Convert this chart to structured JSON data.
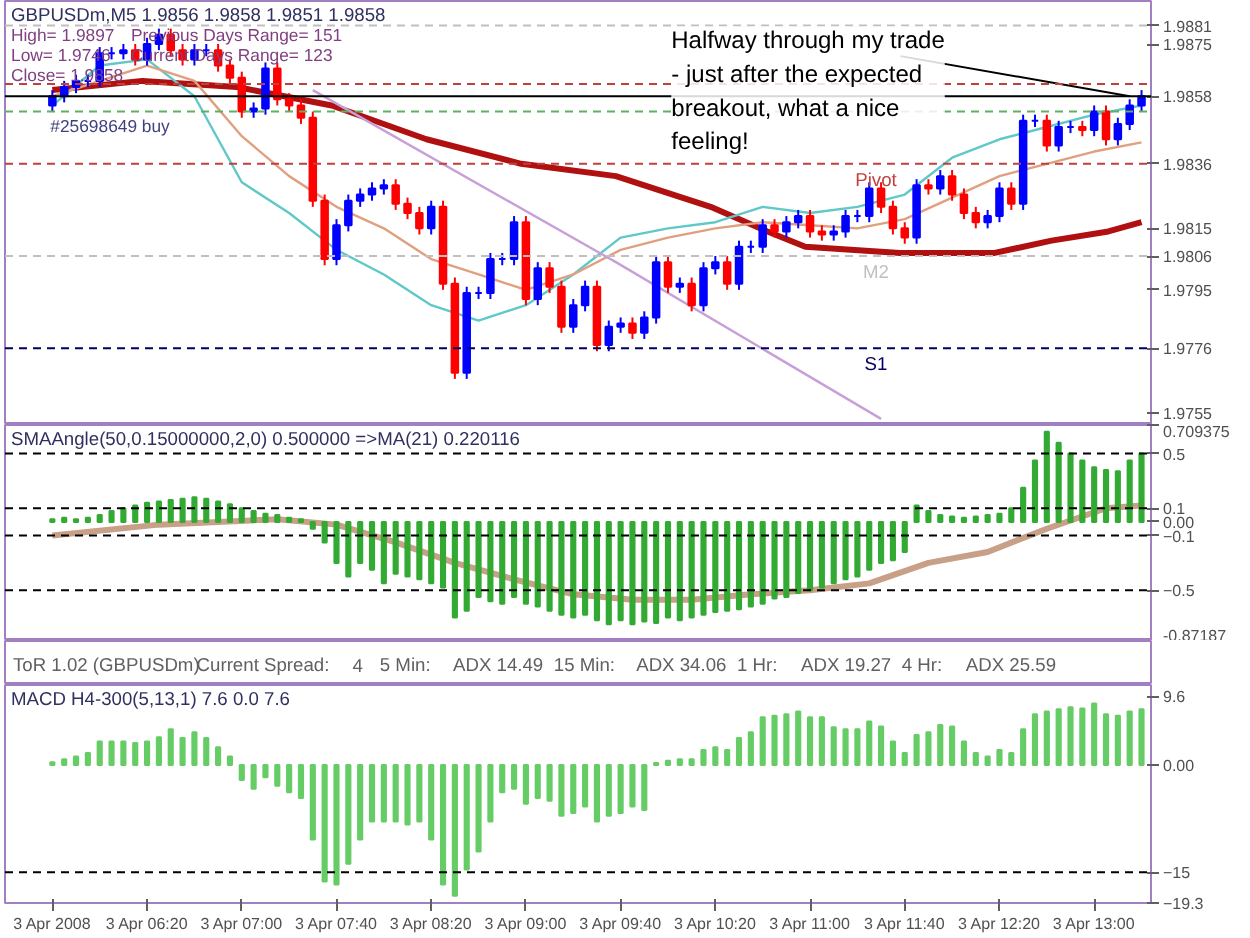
{
  "chart_data": [
    {
      "type": "candlestick",
      "title": "GBPUSDm,M5  1.9856 1.9858 1.9851 1.9858",
      "x": [
        "2008-04-03T05:40",
        "2008-04-03T05:45",
        "2008-04-03T05:50",
        "2008-04-03T05:55",
        "2008-04-03T06:00",
        "2008-04-03T06:05",
        "2008-04-03T06:10",
        "2008-04-03T06:15",
        "2008-04-03T06:20",
        "2008-04-03T06:25",
        "2008-04-03T06:30",
        "2008-04-03T06:35",
        "2008-04-03T06:40",
        "2008-04-03T06:45",
        "2008-04-03T06:50",
        "2008-04-03T06:55",
        "2008-04-03T07:00",
        "2008-04-03T07:05",
        "2008-04-03T07:10",
        "2008-04-03T07:15",
        "2008-04-03T07:20",
        "2008-04-03T07:25",
        "2008-04-03T07:30",
        "2008-04-03T07:35",
        "2008-04-03T07:40",
        "2008-04-03T07:45",
        "2008-04-03T07:50",
        "2008-04-03T07:55",
        "2008-04-03T08:00",
        "2008-04-03T08:05",
        "2008-04-03T08:10",
        "2008-04-03T08:15",
        "2008-04-03T08:20",
        "2008-04-03T08:25",
        "2008-04-03T08:30",
        "2008-04-03T08:35",
        "2008-04-03T08:40",
        "2008-04-03T08:45",
        "2008-04-03T08:50",
        "2008-04-03T08:55",
        "2008-04-03T09:00",
        "2008-04-03T09:05",
        "2008-04-03T09:10",
        "2008-04-03T09:15",
        "2008-04-03T09:20",
        "2008-04-03T09:25",
        "2008-04-03T09:30",
        "2008-04-03T09:35",
        "2008-04-03T09:40",
        "2008-04-03T09:45",
        "2008-04-03T09:50",
        "2008-04-03T09:55",
        "2008-04-03T10:00",
        "2008-04-03T10:05",
        "2008-04-03T10:10",
        "2008-04-03T10:15",
        "2008-04-03T10:20",
        "2008-04-03T10:25",
        "2008-04-03T10:30",
        "2008-04-03T10:35",
        "2008-04-03T10:40",
        "2008-04-03T10:45",
        "2008-04-03T10:50",
        "2008-04-03T10:55",
        "2008-04-03T11:00",
        "2008-04-03T11:05",
        "2008-04-03T11:10",
        "2008-04-03T11:15",
        "2008-04-03T11:20",
        "2008-04-03T11:25",
        "2008-04-03T11:30",
        "2008-04-03T11:35",
        "2008-04-03T11:40",
        "2008-04-03T11:45",
        "2008-04-03T11:50",
        "2008-04-03T11:55",
        "2008-04-03T12:00",
        "2008-04-03T12:05",
        "2008-04-03T12:10",
        "2008-04-03T12:15",
        "2008-04-03T12:20",
        "2008-04-03T12:25",
        "2008-04-03T12:30",
        "2008-04-03T12:35",
        "2008-04-03T12:40",
        "2008-04-03T12:45",
        "2008-04-03T12:50",
        "2008-04-03T12:55",
        "2008-04-03T13:00",
        "2008-04-03T13:05",
        "2008-04-03T13:10",
        "2008-04-03T13:15",
        "2008-04-03T13:20"
      ],
      "ohlc": [
        [
          1.9855,
          1.986,
          1.9853,
          1.9858
        ],
        [
          1.9858,
          1.9863,
          1.9856,
          1.9861
        ],
        [
          1.9861,
          1.9865,
          1.9859,
          1.9863
        ],
        [
          1.9863,
          1.9865,
          1.9861,
          1.9863
        ],
        [
          1.9863,
          1.9874,
          1.9861,
          1.9872
        ],
        [
          1.9872,
          1.9874,
          1.987,
          1.9872
        ],
        [
          1.9872,
          1.9875,
          1.987,
          1.9873
        ],
        [
          1.9873,
          1.9875,
          1.9868,
          1.987
        ],
        [
          1.987,
          1.9877,
          1.9868,
          1.9875
        ],
        [
          1.9875,
          1.988,
          1.9873,
          1.9878
        ],
        [
          1.9878,
          1.988,
          1.9871,
          1.9873
        ],
        [
          1.9873,
          1.9875,
          1.9868,
          1.987
        ],
        [
          1.987,
          1.9875,
          1.9868,
          1.9873
        ],
        [
          1.9873,
          1.9875,
          1.9871,
          1.9873
        ],
        [
          1.9873,
          1.9875,
          1.9866,
          1.9868
        ],
        [
          1.9868,
          1.987,
          1.9862,
          1.9864
        ],
        [
          1.9864,
          1.9866,
          1.9851,
          1.9853
        ],
        [
          1.9853,
          1.9856,
          1.9851,
          1.9854
        ],
        [
          1.9854,
          1.9869,
          1.9852,
          1.9867
        ],
        [
          1.9867,
          1.9869,
          1.9855,
          1.9857
        ],
        [
          1.9857,
          1.9859,
          1.9853,
          1.9855
        ],
        [
          1.9855,
          1.9857,
          1.9849,
          1.9851
        ],
        [
          1.9851,
          1.9853,
          1.9822,
          1.9824
        ],
        [
          1.9824,
          1.9826,
          1.9803,
          1.9805
        ],
        [
          1.9805,
          1.9818,
          1.9803,
          1.9816
        ],
        [
          1.9816,
          1.9826,
          1.9814,
          1.9824
        ],
        [
          1.9824,
          1.9828,
          1.9822,
          1.9826
        ],
        [
          1.9826,
          1.983,
          1.9824,
          1.9828
        ],
        [
          1.9828,
          1.9831,
          1.9826,
          1.9829
        ],
        [
          1.9829,
          1.9831,
          1.9821,
          1.9823
        ],
        [
          1.9823,
          1.9825,
          1.9818,
          1.982
        ],
        [
          1.982,
          1.9822,
          1.9813,
          1.9815
        ],
        [
          1.9815,
          1.9824,
          1.9813,
          1.9822
        ],
        [
          1.9822,
          1.9824,
          1.9795,
          1.9797
        ],
        [
          1.9797,
          1.9799,
          1.9766,
          1.9768
        ],
        [
          1.9768,
          1.9796,
          1.9766,
          1.9794
        ],
        [
          1.9794,
          1.9796,
          1.9792,
          1.9794
        ],
        [
          1.9794,
          1.9807,
          1.9792,
          1.9805
        ],
        [
          1.9805,
          1.9807,
          1.9803,
          1.9805
        ],
        [
          1.9805,
          1.9819,
          1.9803,
          1.9817
        ],
        [
          1.9817,
          1.9819,
          1.979,
          1.9792
        ],
        [
          1.9792,
          1.9804,
          1.979,
          1.9802
        ],
        [
          1.9802,
          1.9804,
          1.9794,
          1.9796
        ],
        [
          1.9796,
          1.9798,
          1.9781,
          1.9783
        ],
        [
          1.9783,
          1.9792,
          1.9781,
          1.979
        ],
        [
          1.979,
          1.9798,
          1.9788,
          1.9796
        ],
        [
          1.9796,
          1.9798,
          1.9775,
          1.9777
        ],
        [
          1.9777,
          1.9785,
          1.9775,
          1.9783
        ],
        [
          1.9783,
          1.9786,
          1.9781,
          1.9784
        ],
        [
          1.9784,
          1.9786,
          1.9779,
          1.9781
        ],
        [
          1.9781,
          1.9788,
          1.9779,
          1.9786
        ],
        [
          1.9786,
          1.9806,
          1.9784,
          1.9804
        ],
        [
          1.9804,
          1.9806,
          1.9794,
          1.9796
        ],
        [
          1.9796,
          1.9799,
          1.9794,
          1.9797
        ],
        [
          1.9797,
          1.9799,
          1.9788,
          1.979
        ],
        [
          1.979,
          1.9804,
          1.9788,
          1.9802
        ],
        [
          1.9802,
          1.9806,
          1.98,
          1.9804
        ],
        [
          1.9804,
          1.9806,
          1.9795,
          1.9797
        ],
        [
          1.9797,
          1.9811,
          1.9795,
          1.9809
        ],
        [
          1.9809,
          1.9811,
          1.9807,
          1.9809
        ],
        [
          1.9809,
          1.9818,
          1.9807,
          1.9816
        ],
        [
          1.9816,
          1.9818,
          1.9812,
          1.9814
        ],
        [
          1.9814,
          1.9819,
          1.9812,
          1.9817
        ],
        [
          1.9817,
          1.9821,
          1.9815,
          1.9819
        ],
        [
          1.9819,
          1.9821,
          1.9812,
          1.9814
        ],
        [
          1.9814,
          1.9816,
          1.9811,
          1.9813
        ],
        [
          1.9813,
          1.9816,
          1.9811,
          1.9814
        ],
        [
          1.9814,
          1.9821,
          1.9812,
          1.9819
        ],
        [
          1.9819,
          1.9821,
          1.9817,
          1.9819
        ],
        [
          1.9819,
          1.983,
          1.9817,
          1.9828
        ],
        [
          1.9828,
          1.983,
          1.982,
          1.9822
        ],
        [
          1.9822,
          1.9824,
          1.9813,
          1.9815
        ],
        [
          1.9815,
          1.9817,
          1.981,
          1.9812
        ],
        [
          1.9812,
          1.9831,
          1.981,
          1.9829
        ],
        [
          1.9829,
          1.9831,
          1.9826,
          1.9828
        ],
        [
          1.9828,
          1.9834,
          1.9826,
          1.9832
        ],
        [
          1.9832,
          1.9834,
          1.9824,
          1.9826
        ],
        [
          1.9826,
          1.9828,
          1.9818,
          1.982
        ],
        [
          1.982,
          1.9822,
          1.9815,
          1.9817
        ],
        [
          1.9817,
          1.9821,
          1.9815,
          1.9819
        ],
        [
          1.9819,
          1.983,
          1.9817,
          1.9828
        ],
        [
          1.9828,
          1.983,
          1.9821,
          1.9823
        ],
        [
          1.9823,
          1.9852,
          1.9821,
          1.985
        ],
        [
          1.985,
          1.9852,
          1.9848,
          1.985
        ],
        [
          1.985,
          1.9852,
          1.984,
          1.9842
        ],
        [
          1.9842,
          1.985,
          1.984,
          1.9848
        ],
        [
          1.9848,
          1.985,
          1.9846,
          1.9848
        ],
        [
          1.9848,
          1.985,
          1.9845,
          1.9847
        ],
        [
          1.9847,
          1.9855,
          1.9845,
          1.9853
        ],
        [
          1.9853,
          1.9855,
          1.9842,
          1.9844
        ],
        [
          1.9844,
          1.9851,
          1.9842,
          1.9849
        ],
        [
          1.9849,
          1.9857,
          1.9847,
          1.9855
        ],
        [
          1.9855,
          1.986,
          1.9853,
          1.9858
        ]
      ],
      "colors": [
        "#0000ff",
        "#0000ff",
        "#0000ff",
        "#0000ff",
        "#0000ff",
        "#0000ff",
        "#0000ff",
        "#ff0000",
        "#0000ff",
        "#0000ff",
        "#ff0000",
        "#ff0000",
        "#0000ff",
        "#0000ff",
        "#ff0000",
        "#ff0000",
        "#ff0000",
        "#0000ff",
        "#0000ff",
        "#ff0000",
        "#ff0000",
        "#ff0000",
        "#ff0000",
        "#ff0000",
        "#0000ff",
        "#0000ff",
        "#0000ff",
        "#0000ff",
        "#0000ff",
        "#ff0000",
        "#ff0000",
        "#ff0000",
        "#0000ff",
        "#ff0000",
        "#ff0000",
        "#0000ff",
        "#0000ff",
        "#0000ff",
        "#0000ff",
        "#0000ff",
        "#ff0000",
        "#0000ff",
        "#ff0000",
        "#ff0000",
        "#0000ff",
        "#0000ff",
        "#ff0000",
        "#0000ff",
        "#0000ff",
        "#ff0000",
        "#0000ff",
        "#0000ff",
        "#ff0000",
        "#0000ff",
        "#ff0000",
        "#0000ff",
        "#0000ff",
        "#ff0000",
        "#0000ff",
        "#0000ff",
        "#0000ff",
        "#ff0000",
        "#0000ff",
        "#0000ff",
        "#ff0000",
        "#ff0000",
        "#0000ff",
        "#0000ff",
        "#0000ff",
        "#0000ff",
        "#ff0000",
        "#ff0000",
        "#ff0000",
        "#0000ff",
        "#ff0000",
        "#0000ff",
        "#ff0000",
        "#ff0000",
        "#ff0000",
        "#0000ff",
        "#0000ff",
        "#ff0000",
        "#0000ff",
        "#0000ff",
        "#ff0000",
        "#0000ff",
        "#0000ff",
        "#ff0000",
        "#0000ff",
        "#ff0000",
        "#0000ff",
        "#0000ff",
        "#0000ff"
      ],
      "series": [
        {
          "type": "line",
          "color": "#b01010",
          "x": [
            "2008-04-03T05:40",
            "2008-04-03T06:18",
            "2008-04-03T06:58",
            "2008-04-03T07:38",
            "2008-04-03T08:18",
            "2008-04-03T08:58",
            "2008-04-03T09:38",
            "2008-04-03T10:18",
            "2008-04-03T10:42",
            "2008-04-03T10:58",
            "2008-04-03T11:38",
            "2008-04-03T12:18",
            "2008-04-03T12:42",
            "2008-04-03T13:06",
            "2008-04-03T13:20"
          ],
          "values": [
            1.986,
            1.9863,
            1.9861,
            1.9855,
            1.9844,
            1.9836,
            1.9832,
            1.9822,
            1.9814,
            1.9809,
            1.9807,
            1.9807,
            1.9811,
            1.9814,
            1.9817
          ]
        },
        {
          "type": "line",
          "color": "#60c8c8",
          "x": [
            "2008-04-03T05:40",
            "2008-04-03T06:00",
            "2008-04-03T06:20",
            "2008-04-03T06:40",
            "2008-04-03T07:00",
            "2008-04-03T07:20",
            "2008-04-03T07:40",
            "2008-04-03T08:00",
            "2008-04-03T08:20",
            "2008-04-03T08:40",
            "2008-04-03T09:00",
            "2008-04-03T09:20",
            "2008-04-03T09:40",
            "2008-04-03T10:00",
            "2008-04-03T10:20",
            "2008-04-03T10:40",
            "2008-04-03T11:00",
            "2008-04-03T11:20",
            "2008-04-03T11:40",
            "2008-04-03T12:00",
            "2008-04-03T12:20",
            "2008-04-03T12:40",
            "2008-04-03T13:00",
            "2008-04-03T13:20"
          ],
          "values": [
            1.9855,
            1.9868,
            1.987,
            1.9858,
            1.983,
            1.982,
            1.9808,
            1.98,
            1.979,
            1.9785,
            1.979,
            1.98,
            1.9812,
            1.9815,
            1.9817,
            1.9822,
            1.982,
            1.9822,
            1.9826,
            1.9838,
            1.9844,
            1.9848,
            1.9852,
            1.9855
          ]
        },
        {
          "type": "line",
          "color": "#e0a080",
          "x": [
            "2008-04-03T05:40",
            "2008-04-03T06:20",
            "2008-04-03T06:40",
            "2008-04-03T07:00",
            "2008-04-03T07:20",
            "2008-04-03T07:40",
            "2008-04-03T08:00",
            "2008-04-03T08:20",
            "2008-04-03T08:40",
            "2008-04-03T09:00",
            "2008-04-03T09:20",
            "2008-04-03T09:40",
            "2008-04-03T10:00",
            "2008-04-03T10:20",
            "2008-04-03T10:40",
            "2008-04-03T11:00",
            "2008-04-03T11:20",
            "2008-04-03T11:40",
            "2008-04-03T12:00",
            "2008-04-03T12:20",
            "2008-04-03T12:40",
            "2008-04-03T13:00",
            "2008-04-03T13:20"
          ],
          "values": [
            1.9858,
            1.9868,
            1.9863,
            1.9845,
            1.9832,
            1.9822,
            1.9815,
            1.9805,
            1.98,
            1.9795,
            1.98,
            1.9808,
            1.9812,
            1.9815,
            1.9817,
            1.9816,
            1.9815,
            1.9818,
            1.9825,
            1.9832,
            1.9836,
            1.984,
            1.9843
          ]
        },
        {
          "type": "line",
          "color": "#c8a0d8",
          "x": [
            "2008-04-03T07:30",
            "2008-04-03T09:38",
            "2008-04-03T11:30"
          ],
          "values": [
            1.986,
            1.9804,
            1.9753
          ]
        }
      ],
      "ref_lines": [
        {
          "axis": "y",
          "value": 1.9881,
          "color": "#c0c0c0",
          "line_style": "dashed"
        },
        {
          "axis": "y",
          "value": 1.9862,
          "color": "#c04040",
          "line_style": "dashed"
        },
        {
          "axis": "y",
          "value": 1.9858,
          "color": "#000000",
          "line_style": "solid"
        },
        {
          "axis": "y",
          "value": 1.9853,
          "color": "#60b060",
          "line_style": "dashed"
        },
        {
          "axis": "y",
          "value": 1.9836,
          "color": "#c04040",
          "line_style": "dashed",
          "label": "Pivot"
        },
        {
          "axis": "y",
          "value": 1.9806,
          "color": "#c0c0c0",
          "line_style": "dashed",
          "label": "M2"
        },
        {
          "axis": "y",
          "value": 1.9776,
          "color": "#000060",
          "line_style": "dashed",
          "label": "S1"
        }
      ],
      "annotations": [
        "High= 1.9897",
        "Previous Days Range= 151",
        "Low= 1.9746",
        "Current Days Range= 123",
        "Close= 1.9858",
        {
          "text": "#25698649 buy",
          "x": "2008-04-03T05:40",
          "y": 1.9853
        },
        {
          "text": "Halfway through my trade - just after the expected breakout, what a nice feeling!",
          "x": "2008-04-03T13:15",
          "y": 1.9858
        }
      ],
      "xlim": [
        "2008-04-03T05:20",
        "2008-04-03T13:24"
      ],
      "ylim": [
        1.9751,
        1.9889
      ],
      "yticks": [
        1.9881,
        1.9875,
        1.9858,
        1.9836,
        1.9815,
        1.9806,
        1.9795,
        1.9776,
        1.9755
      ],
      "tick_labels": "y"
    },
    {
      "type": "bar",
      "title": "SMAAngle(50,0.15000000,2,0) 0.500000  =>MA(21) 0.220116",
      "color": "#33aa33",
      "x": [
        "2008-04-03T05:40",
        "2008-04-03T05:45",
        "2008-04-03T05:50",
        "2008-04-03T05:55",
        "2008-04-03T06:00",
        "2008-04-03T06:05",
        "2008-04-03T06:10",
        "2008-04-03T06:15",
        "2008-04-03T06:20",
        "2008-04-03T06:25",
        "2008-04-03T06:30",
        "2008-04-03T06:35",
        "2008-04-03T06:40",
        "2008-04-03T06:45",
        "2008-04-03T06:50",
        "2008-04-03T06:55",
        "2008-04-03T07:00",
        "2008-04-03T07:05",
        "2008-04-03T07:10",
        "2008-04-03T07:15",
        "2008-04-03T07:20",
        "2008-04-03T07:25",
        "2008-04-03T07:30",
        "2008-04-03T07:35",
        "2008-04-03T07:40",
        "2008-04-03T07:45",
        "2008-04-03T07:50",
        "2008-04-03T07:55",
        "2008-04-03T08:00",
        "2008-04-03T08:05",
        "2008-04-03T08:10",
        "2008-04-03T08:15",
        "2008-04-03T08:20",
        "2008-04-03T08:25",
        "2008-04-03T08:30",
        "2008-04-03T08:35",
        "2008-04-03T08:40",
        "2008-04-03T08:45",
        "2008-04-03T08:50",
        "2008-04-03T08:55",
        "2008-04-03T09:00",
        "2008-04-03T09:05",
        "2008-04-03T09:10",
        "2008-04-03T09:15",
        "2008-04-03T09:20",
        "2008-04-03T09:25",
        "2008-04-03T09:30",
        "2008-04-03T09:35",
        "2008-04-03T09:40",
        "2008-04-03T09:45",
        "2008-04-03T09:50",
        "2008-04-03T09:55",
        "2008-04-03T10:00",
        "2008-04-03T10:05",
        "2008-04-03T10:10",
        "2008-04-03T10:15",
        "2008-04-03T10:20",
        "2008-04-03T10:25",
        "2008-04-03T10:30",
        "2008-04-03T10:35",
        "2008-04-03T10:40",
        "2008-04-03T10:45",
        "2008-04-03T10:50",
        "2008-04-03T10:55",
        "2008-04-03T11:00",
        "2008-04-03T11:05",
        "2008-04-03T11:10",
        "2008-04-03T11:15",
        "2008-04-03T11:20",
        "2008-04-03T11:25",
        "2008-04-03T11:30",
        "2008-04-03T11:35",
        "2008-04-03T11:40",
        "2008-04-03T11:45",
        "2008-04-03T11:50",
        "2008-04-03T11:55",
        "2008-04-03T12:00",
        "2008-04-03T12:05",
        "2008-04-03T12:10",
        "2008-04-03T12:15",
        "2008-04-03T12:20",
        "2008-04-03T12:25",
        "2008-04-03T12:30",
        "2008-04-03T12:35",
        "2008-04-03T12:40",
        "2008-04-03T12:45",
        "2008-04-03T12:50",
        "2008-04-03T12:55",
        "2008-04-03T13:00",
        "2008-04-03T13:05",
        "2008-04-03T13:10",
        "2008-04-03T13:15",
        "2008-04-03T13:20"
      ],
      "values": [
        0.02,
        0.03,
        0.02,
        0.03,
        0.05,
        0.08,
        0.1,
        0.12,
        0.14,
        0.15,
        0.16,
        0.17,
        0.18,
        0.17,
        0.15,
        0.13,
        0.1,
        0.08,
        0.06,
        0.05,
        0.03,
        0.02,
        -0.05,
        -0.15,
        -0.3,
        -0.4,
        -0.3,
        -0.35,
        -0.45,
        -0.38,
        -0.4,
        -0.42,
        -0.45,
        -0.48,
        -0.7,
        -0.65,
        -0.55,
        -0.58,
        -0.6,
        -0.55,
        -0.6,
        -0.62,
        -0.65,
        -0.68,
        -0.7,
        -0.68,
        -0.72,
        -0.75,
        -0.72,
        -0.75,
        -0.73,
        -0.74,
        -0.7,
        -0.72,
        -0.7,
        -0.68,
        -0.66,
        -0.65,
        -0.64,
        -0.62,
        -0.6,
        -0.56,
        -0.55,
        -0.52,
        -0.5,
        -0.48,
        -0.45,
        -0.42,
        -0.4,
        -0.35,
        -0.3,
        -0.28,
        -0.22,
        0.12,
        0.08,
        0.05,
        0.04,
        0.03,
        0.04,
        0.05,
        0.06,
        0.1,
        0.25,
        0.45,
        0.66,
        0.58,
        0.5,
        0.45,
        0.4,
        0.38,
        0.37,
        0.45,
        0.5
      ],
      "series": [
        {
          "type": "line",
          "color": "#c8a088",
          "x": [
            "2008-04-03T05:40",
            "2008-04-03T06:25",
            "2008-04-03T07:15",
            "2008-04-03T07:40",
            "2008-04-03T08:05",
            "2008-04-03T08:30",
            "2008-04-03T08:55",
            "2008-04-03T09:20",
            "2008-04-03T09:45",
            "2008-04-03T10:10",
            "2008-04-03T10:35",
            "2008-04-03T11:00",
            "2008-04-03T11:25",
            "2008-04-03T11:50",
            "2008-04-03T12:15",
            "2008-04-03T12:40",
            "2008-04-03T13:05",
            "2008-04-03T13:20"
          ],
          "values": [
            -0.1,
            -0.02,
            0.02,
            -0.02,
            -0.15,
            -0.3,
            -0.42,
            -0.53,
            -0.57,
            -0.57,
            -0.53,
            -0.5,
            -0.45,
            -0.3,
            -0.22,
            -0.05,
            0.1,
            0.12
          ]
        }
      ],
      "ref_lines": [
        {
          "axis": "y",
          "value": 0.5,
          "color": "#000000",
          "line_style": "dashed"
        },
        {
          "axis": "y",
          "value": 0.1,
          "color": "#000000",
          "line_style": "dashed"
        },
        {
          "axis": "y",
          "value": -0.1,
          "color": "#000000",
          "line_style": "dashed"
        },
        {
          "axis": "y",
          "value": -0.5,
          "color": "#000000",
          "line_style": "dashed"
        }
      ],
      "xlim": [
        "2008-04-03T05:20",
        "2008-04-03T13:24"
      ],
      "ylim": [
        -0.87187,
        0.709375
      ],
      "yticks": [
        {
          "value": 0.709375,
          "label": "0.709375"
        },
        0.5,
        0.1,
        {
          "value": 0,
          "label": "0.00"
        },
        -0.1,
        -0.5,
        {
          "value": -0.87187,
          "label": "-0.87187"
        }
      ],
      "tick_labels": "y"
    },
    {
      "type": "other",
      "annotations": [
        "ToR 1.02 (GBPUSDm)",
        "Current Spread:",
        "4",
        "5 Min:",
        "ADX 14.49",
        "15 Min:",
        "ADX 34.06",
        "1 Hr:",
        "ADX 19.27",
        "4 Hr:",
        "ADX 25.59"
      ]
    },
    {
      "type": "bar",
      "title": "MACD H4-300(5,13,1) 7.6 0.0 7.6",
      "color": "#66cc66",
      "x": [
        "2008-04-03T05:40",
        "2008-04-03T05:45",
        "2008-04-03T05:50",
        "2008-04-03T05:55",
        "2008-04-03T06:00",
        "2008-04-03T06:05",
        "2008-04-03T06:10",
        "2008-04-03T06:15",
        "2008-04-03T06:20",
        "2008-04-03T06:25",
        "2008-04-03T06:30",
        "2008-04-03T06:35",
        "2008-04-03T06:40",
        "2008-04-03T06:45",
        "2008-04-03T06:50",
        "2008-04-03T06:55",
        "2008-04-03T07:00",
        "2008-04-03T07:05",
        "2008-04-03T07:10",
        "2008-04-03T07:15",
        "2008-04-03T07:20",
        "2008-04-03T07:25",
        "2008-04-03T07:30",
        "2008-04-03T07:35",
        "2008-04-03T07:40",
        "2008-04-03T07:45",
        "2008-04-03T07:50",
        "2008-04-03T07:55",
        "2008-04-03T08:00",
        "2008-04-03T08:05",
        "2008-04-03T08:10",
        "2008-04-03T08:15",
        "2008-04-03T08:20",
        "2008-04-03T08:25",
        "2008-04-03T08:30",
        "2008-04-03T08:35",
        "2008-04-03T08:40",
        "2008-04-03T08:45",
        "2008-04-03T08:50",
        "2008-04-03T08:55",
        "2008-04-03T09:00",
        "2008-04-03T09:05",
        "2008-04-03T09:10",
        "2008-04-03T09:15",
        "2008-04-03T09:20",
        "2008-04-03T09:25",
        "2008-04-03T09:30",
        "2008-04-03T09:35",
        "2008-04-03T09:40",
        "2008-04-03T09:45",
        "2008-04-03T09:50",
        "2008-04-03T09:55",
        "2008-04-03T10:00",
        "2008-04-03T10:05",
        "2008-04-03T10:10",
        "2008-04-03T10:15",
        "2008-04-03T10:20",
        "2008-04-03T10:25",
        "2008-04-03T10:30",
        "2008-04-03T10:35",
        "2008-04-03T10:40",
        "2008-04-03T10:45",
        "2008-04-03T10:50",
        "2008-04-03T10:55",
        "2008-04-03T11:00",
        "2008-04-03T11:05",
        "2008-04-03T11:10",
        "2008-04-03T11:15",
        "2008-04-03T11:20",
        "2008-04-03T11:25",
        "2008-04-03T11:30",
        "2008-04-03T11:35",
        "2008-04-03T11:40",
        "2008-04-03T11:45",
        "2008-04-03T11:50",
        "2008-04-03T11:55",
        "2008-04-03T12:00",
        "2008-04-03T12:05",
        "2008-04-03T12:10",
        "2008-04-03T12:15",
        "2008-04-03T12:20",
        "2008-04-03T12:25",
        "2008-04-03T12:30",
        "2008-04-03T12:35",
        "2008-04-03T12:40",
        "2008-04-03T12:45",
        "2008-04-03T12:50",
        "2008-04-03T12:55",
        "2008-04-03T13:00",
        "2008-04-03T13:05",
        "2008-04-03T13:10",
        "2008-04-03T13:15",
        "2008-04-03T13:20"
      ],
      "values": [
        0.4,
        0.8,
        1.2,
        1.7,
        3.3,
        3.3,
        3.3,
        3.1,
        3.3,
        3.9,
        5.0,
        3.8,
        4.6,
        3.8,
        2.5,
        1.2,
        -2.1,
        -3.3,
        -1.7,
        -2.9,
        -3.8,
        -4.6,
        -10.4,
        -16.3,
        -16.7,
        -13.8,
        -10.4,
        -7.9,
        -7.9,
        -7.9,
        -8.3,
        -7.9,
        -10.4,
        -16.7,
        -18.3,
        -14.6,
        -12.1,
        -7.9,
        -3.8,
        -3.3,
        -5.4,
        -4.6,
        -5.0,
        -7.1,
        -6.7,
        -5.8,
        -7.9,
        -7.1,
        -6.7,
        -5.8,
        -6.3,
        0.3,
        0.6,
        0.8,
        0.8,
        2.1,
        2.5,
        2.1,
        3.8,
        4.6,
        6.7,
        6.9,
        7.1,
        7.5,
        6.7,
        6.7,
        5.3,
        5.0,
        5.0,
        6.1,
        5.4,
        3.3,
        1.7,
        4.2,
        4.6,
        5.6,
        5.4,
        3.3,
        1.7,
        1.2,
        2.1,
        1.7,
        5.0,
        7.1,
        7.5,
        7.8,
        8.1,
        7.9,
        8.6,
        7.1,
        6.9,
        7.5,
        7.8
      ],
      "ref_lines": [
        {
          "axis": "y",
          "value": -15,
          "color": "#000000",
          "line_style": "dashed"
        }
      ],
      "xlim": [
        "2008-04-03T05:20",
        "2008-04-03T13:24"
      ],
      "ylim": [
        -19.3,
        11.2
      ],
      "xticks": [
        {
          "value": "2008-04-03T05:40",
          "label": "3 Apr 2008"
        },
        {
          "value": "2008-04-03T06:20",
          "label": "3 Apr 06:20"
        },
        {
          "value": "2008-04-03T07:00",
          "label": "3 Apr 07:00"
        },
        {
          "value": "2008-04-03T07:40",
          "label": "3 Apr 07:40"
        },
        {
          "value": "2008-04-03T08:20",
          "label": "3 Apr 08:20"
        },
        {
          "value": "2008-04-03T09:00",
          "label": "3 Apr 09:00"
        },
        {
          "value": "2008-04-03T09:40",
          "label": "3 Apr 09:40"
        },
        {
          "value": "2008-04-03T10:20",
          "label": "3 Apr 10:20"
        },
        {
          "value": "2008-04-03T11:00",
          "label": "3 Apr 11:00"
        },
        {
          "value": "2008-04-03T11:40",
          "label": "3 Apr 11:40"
        },
        {
          "value": "2008-04-03T12:20",
          "label": "3 Apr 12:20"
        },
        {
          "value": "2008-04-03T13:00",
          "label": "3 Apr 13:00"
        }
      ],
      "yticks": [
        9.6,
        {
          "value": 0,
          "label": "0.00"
        },
        -15,
        -19.3
      ]
    }
  ]
}
